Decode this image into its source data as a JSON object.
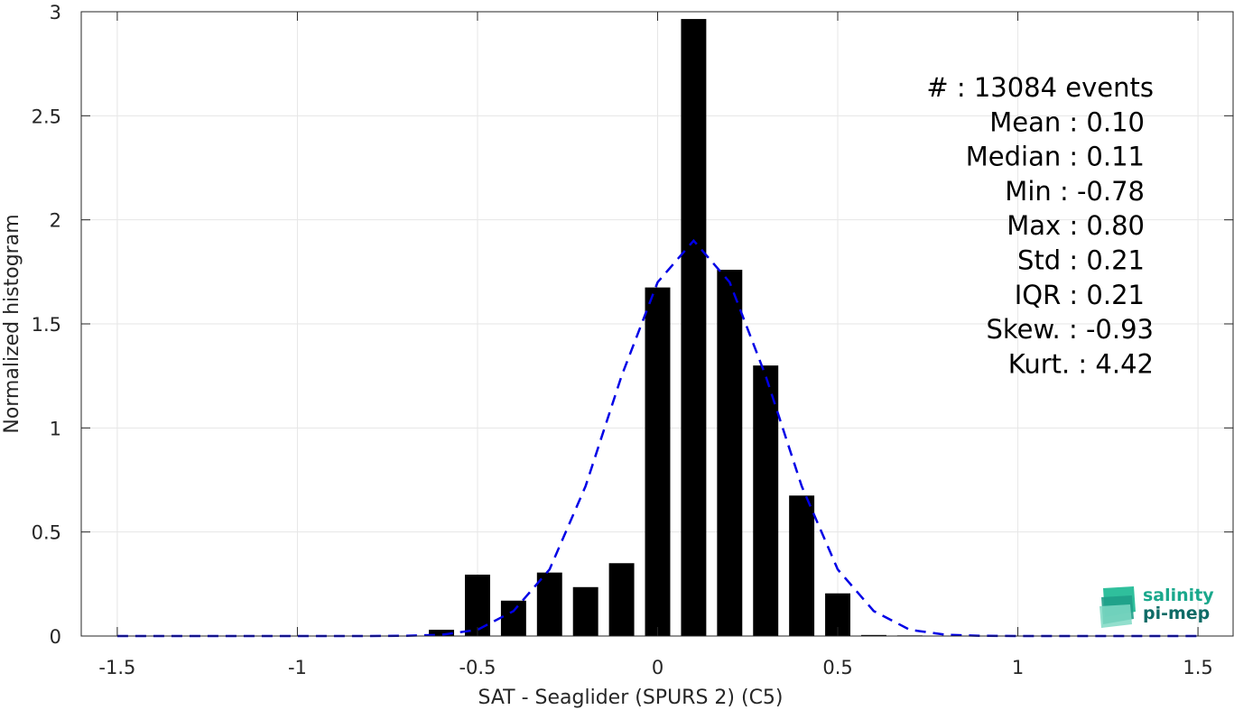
{
  "chart_data": {
    "type": "bar",
    "xlabel": "SAT - Seaglider (SPURS 2) (C5)",
    "ylabel": "Normalized histogram",
    "xlim": [
      -1.6,
      1.6
    ],
    "ylim": [
      0,
      3
    ],
    "grid": true,
    "xticks": [
      "-1.5",
      "-1",
      "-0.5",
      "0",
      "0.5",
      "1",
      "1.5"
    ],
    "xtick_values": [
      -1.5,
      -1,
      -0.5,
      0,
      0.5,
      1,
      1.5
    ],
    "yticks": [
      "0",
      "0.5",
      "1",
      "1.5",
      "2",
      "2.5",
      "3"
    ],
    "ytick_values": [
      0,
      0.5,
      1,
      1.5,
      2,
      2.5,
      3
    ],
    "bar_width": 0.07,
    "bars": {
      "x": [
        -0.6,
        -0.5,
        -0.4,
        -0.3,
        -0.2,
        -0.1,
        0.0,
        0.1,
        0.2,
        0.3,
        0.4,
        0.5,
        0.6,
        0.7
      ],
      "values": [
        0.03,
        0.295,
        0.17,
        0.305,
        0.235,
        0.35,
        1.675,
        2.965,
        1.76,
        1.3,
        0.675,
        0.205,
        0.005,
        0.003
      ]
    },
    "fit_curve": {
      "color": "#0000e6",
      "style": "dashed",
      "x": [
        -1.5,
        -1.4,
        -1.3,
        -1.2,
        -1.1,
        -1.0,
        -0.9,
        -0.8,
        -0.7,
        -0.6,
        -0.5,
        -0.4,
        -0.3,
        -0.2,
        -0.1,
        0.0,
        0.1,
        0.2,
        0.3,
        0.4,
        0.5,
        0.6,
        0.7,
        0.8,
        0.9,
        1.0,
        1.1,
        1.2,
        1.3,
        1.4,
        1.5
      ],
      "y": [
        0,
        0,
        0,
        0,
        0,
        0,
        0,
        0,
        0.001,
        0.006,
        0.03,
        0.12,
        0.32,
        0.72,
        1.25,
        1.7,
        1.9,
        1.7,
        1.25,
        0.72,
        0.32,
        0.12,
        0.03,
        0.006,
        0.001,
        0,
        0,
        0,
        0,
        0,
        0
      ]
    },
    "bar_color": "#000000",
    "stats": [
      {
        "label": "#  : 13084 events"
      },
      {
        "label": "Mean : 0.10"
      },
      {
        "label": "Median : 0.11"
      },
      {
        "label": "Min : -0.78"
      },
      {
        "label": "Max : 0.80"
      },
      {
        "label": "Std : 0.21"
      },
      {
        "label": "IQR : 0.21"
      },
      {
        "label": "Skew. : -0.93"
      },
      {
        "label": "Kurt. : 4.42"
      }
    ]
  },
  "logo": {
    "line1": "salinity",
    "line2": "pi-mep",
    "color1": "#1aa88c",
    "color2": "#0e6b66"
  }
}
